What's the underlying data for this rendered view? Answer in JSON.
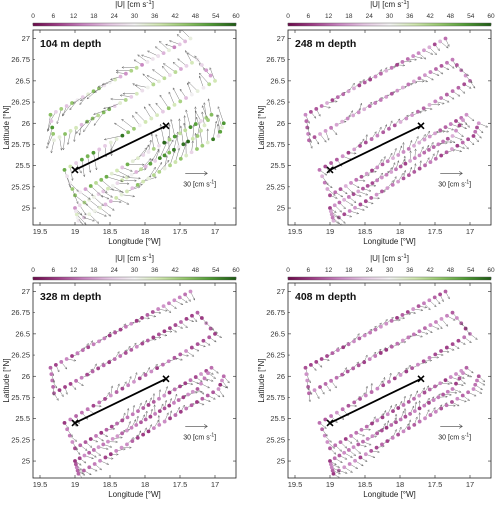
{
  "colorbar": {
    "label_main": "|U| [cm s",
    "label_exp": "-1",
    "label_end": "]",
    "ticks": [
      "0",
      "6",
      "12",
      "18",
      "24",
      "30",
      "36",
      "42",
      "48",
      "54",
      "60"
    ],
    "colors": [
      "#6a0a4a",
      "#9e3d86",
      "#c884c0",
      "#e4c6e2",
      "#f2f2f2",
      "#cfe6ae",
      "#93c66a",
      "#4f9a34",
      "#1e5a14"
    ]
  },
  "section_line": {
    "start": {
      "lon": -19.0,
      "lat": 25.45
    },
    "end": {
      "lon": -17.7,
      "lat": 25.97
    },
    "color": "#000000"
  },
  "scale_arrow": {
    "main": "30 [cm s",
    "exp": "-1",
    "end": "]"
  },
  "chart_data": [
    {
      "type": "scatter",
      "title": "104 m depth",
      "xlabel": "Longitude [°W]",
      "ylabel": "Latitude [°N]",
      "xlim": [
        -19.6,
        -16.7
      ],
      "ylim": [
        24.8,
        27.1
      ],
      "xticks": [
        "19.5",
        "19",
        "18.5",
        "18",
        "17.5",
        "17"
      ],
      "yticks": [
        "25",
        "25.5",
        "26",
        "26.5",
        "27"
      ],
      "speed_range_cm_s": [
        0,
        60
      ],
      "typical_speed_cm_s": 34
    },
    {
      "type": "scatter",
      "title": "248 m depth",
      "xlabel": "Longitude [°W]",
      "ylabel": "Latitude [°N]",
      "xlim": [
        -19.6,
        -16.7
      ],
      "ylim": [
        24.8,
        27.1
      ],
      "xticks": [
        "19.5",
        "19",
        "18.5",
        "18",
        "17.5",
        "17"
      ],
      "yticks": [
        "25",
        "25.5",
        "26",
        "26.5",
        "27"
      ],
      "speed_range_cm_s": [
        0,
        60
      ],
      "typical_speed_cm_s": 14
    },
    {
      "type": "scatter",
      "title": "328 m depth",
      "xlabel": "Longitude [°W]",
      "ylabel": "Latitude [°N]",
      "xlim": [
        -19.6,
        -16.7
      ],
      "ylim": [
        24.8,
        27.1
      ],
      "xticks": [
        "19.5",
        "19",
        "18.5",
        "18",
        "17.5",
        "17"
      ],
      "yticks": [
        "25",
        "25.5",
        "26",
        "26.5",
        "27"
      ],
      "speed_range_cm_s": [
        0,
        60
      ],
      "typical_speed_cm_s": 12
    },
    {
      "type": "scatter",
      "title": "408 m depth",
      "xlabel": "Longitude [°W]",
      "ylabel": "Latitude [°N]",
      "xlim": [
        -19.6,
        -16.7
      ],
      "ylim": [
        24.8,
        27.1
      ],
      "xticks": [
        "19.5",
        "19",
        "18.5",
        "18",
        "17.5",
        "17"
      ],
      "yticks": [
        "25",
        "25.5",
        "26",
        "26.5",
        "27"
      ],
      "speed_range_cm_s": [
        0,
        60
      ],
      "typical_speed_cm_s": 12
    }
  ]
}
